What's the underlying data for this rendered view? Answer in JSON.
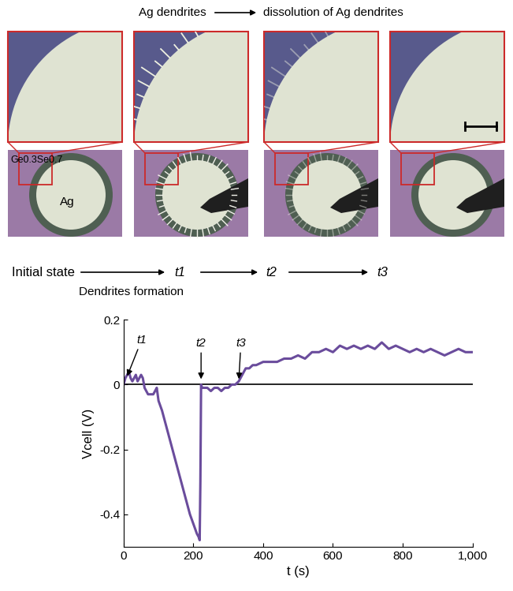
{
  "header": {
    "left": "Ag dendrites",
    "right": "dissolution of Ag dendrites"
  },
  "micrographs": {
    "substrate": "Ge0.3Se0.7",
    "electrode": "Ag"
  },
  "timeline": {
    "start": "Initial state",
    "transition": "Dendrites formation",
    "states": [
      "t1",
      "t2",
      "t3"
    ]
  },
  "chart_data": {
    "type": "line",
    "x_label": "t (s)",
    "y_label": "Vcell (V)",
    "xlim": [
      0,
      1000
    ],
    "ylim": [
      -0.5,
      0.2
    ],
    "xticks": [
      0,
      200,
      400,
      600,
      800,
      {
        "value": 1000,
        "label": "1,000"
      }
    ],
    "yticks": [
      -0.4,
      -0.2,
      0,
      0.2
    ],
    "color": "#6a4c9c",
    "line_style": "solid",
    "x": [
      0,
      5,
      10,
      15,
      20,
      25,
      30,
      35,
      40,
      45,
      50,
      55,
      60,
      65,
      70,
      75,
      80,
      85,
      90,
      95,
      100,
      110,
      120,
      130,
      140,
      150,
      160,
      170,
      180,
      190,
      200,
      210,
      215,
      218,
      220,
      222,
      225,
      230,
      240,
      250,
      260,
      270,
      280,
      290,
      300,
      310,
      320,
      330,
      340,
      350,
      360,
      370,
      380,
      400,
      420,
      440,
      460,
      480,
      500,
      520,
      540,
      560,
      580,
      600,
      620,
      640,
      660,
      680,
      700,
      720,
      740,
      760,
      780,
      800,
      820,
      840,
      860,
      880,
      900,
      920,
      940,
      960,
      980,
      1000
    ],
    "values": [
      0,
      0.02,
      0.03,
      0.04,
      0.02,
      0.01,
      0.02,
      0.03,
      0.01,
      0.02,
      0.03,
      0.02,
      -0.01,
      -0.02,
      -0.03,
      -0.03,
      -0.03,
      -0.03,
      -0.02,
      -0.01,
      -0.05,
      -0.08,
      -0.12,
      -0.16,
      -0.2,
      -0.24,
      -0.28,
      -0.32,
      -0.36,
      -0.4,
      -0.43,
      -0.46,
      -0.47,
      -0.48,
      -0.3,
      0.0,
      -0.01,
      -0.01,
      -0.01,
      -0.02,
      -0.01,
      -0.01,
      -0.02,
      -0.01,
      -0.01,
      0.0,
      0.0,
      0.01,
      0.03,
      0.05,
      0.05,
      0.06,
      0.06,
      0.07,
      0.07,
      0.07,
      0.08,
      0.08,
      0.09,
      0.08,
      0.1,
      0.1,
      0.11,
      0.1,
      0.12,
      0.11,
      0.12,
      0.11,
      0.12,
      0.11,
      0.13,
      0.11,
      0.12,
      0.11,
      0.1,
      0.11,
      0.1,
      0.11,
      0.1,
      0.09,
      0.1,
      0.11,
      0.1,
      0.1
    ],
    "annotations": [
      {
        "text": "t1",
        "x": 8,
        "y": 0.02
      },
      {
        "text": "t2",
        "x": 222,
        "y": 0.01
      },
      {
        "text": "t3",
        "x": 330,
        "y": 0.01
      }
    ]
  }
}
